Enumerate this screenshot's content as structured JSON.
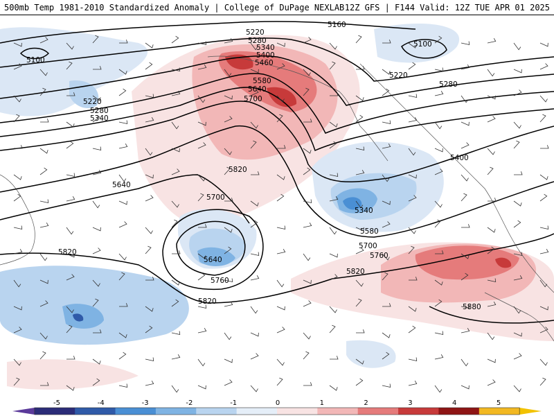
{
  "header": {
    "title_left": "500mb Temp 1981-2010 Standardized Anomaly | College of DuPage NEXLAB",
    "title_right": "12Z GFS | F144 Valid: 12Z TUE APR 01 2025"
  },
  "map": {
    "region": "North Pacific",
    "field": "500mb temperature standardized anomaly",
    "contour_field": "500mb geopotential height (dam x 10, m)",
    "contour_labels": [
      {
        "text": "5100",
        "key": "l5100a"
      },
      {
        "text": "5100",
        "key": "l5100b"
      },
      {
        "text": "5160",
        "key": "l5160"
      },
      {
        "text": "5220",
        "key": "l5220a"
      },
      {
        "text": "5220",
        "key": "l5220b"
      },
      {
        "text": "5220",
        "key": "l5220c"
      },
      {
        "text": "5280",
        "key": "l5280a"
      },
      {
        "text": "5280",
        "key": "l5280b"
      },
      {
        "text": "5280",
        "key": "l5280c"
      },
      {
        "text": "5340",
        "key": "l5340a"
      },
      {
        "text": "5340",
        "key": "l5340b"
      },
      {
        "text": "5340",
        "key": "l5340c"
      },
      {
        "text": "5400",
        "key": "l5400a"
      },
      {
        "text": "5400",
        "key": "l5400b"
      },
      {
        "text": "5460",
        "key": "l5460"
      },
      {
        "text": "5580",
        "key": "l5580a"
      },
      {
        "text": "5580",
        "key": "l5580b"
      },
      {
        "text": "5640",
        "key": "l5640a"
      },
      {
        "text": "5640",
        "key": "l5640b"
      },
      {
        "text": "5640",
        "key": "l5640c"
      },
      {
        "text": "5700",
        "key": "l5700a"
      },
      {
        "text": "5700",
        "key": "l5700b"
      },
      {
        "text": "5700",
        "key": "l5700c"
      },
      {
        "text": "5760",
        "key": "l5760a"
      },
      {
        "text": "5760",
        "key": "l5760b"
      },
      {
        "text": "5820",
        "key": "l5820a"
      },
      {
        "text": "5820",
        "key": "l5820b"
      },
      {
        "text": "5820",
        "key": "l5820c"
      },
      {
        "text": "5820",
        "key": "l5820d"
      },
      {
        "text": "5880",
        "key": "l5880"
      }
    ]
  },
  "colorbar": {
    "ticks": [
      "-5",
      "-4",
      "-3",
      "-2",
      "-1",
      "0",
      "1",
      "2",
      "3",
      "4",
      "5"
    ],
    "colors": [
      "#2b2c78",
      "#2f5aa8",
      "#4a8fd4",
      "#7fb3e3",
      "#b9d4ef",
      "#e5eef8",
      "#f8e3e3",
      "#f2b7b7",
      "#e57b7b",
      "#c73a3a",
      "#8e1414",
      "#f2b822"
    ],
    "underflow_color": "#5b3a9a",
    "overflow_color": "#f2c200"
  }
}
